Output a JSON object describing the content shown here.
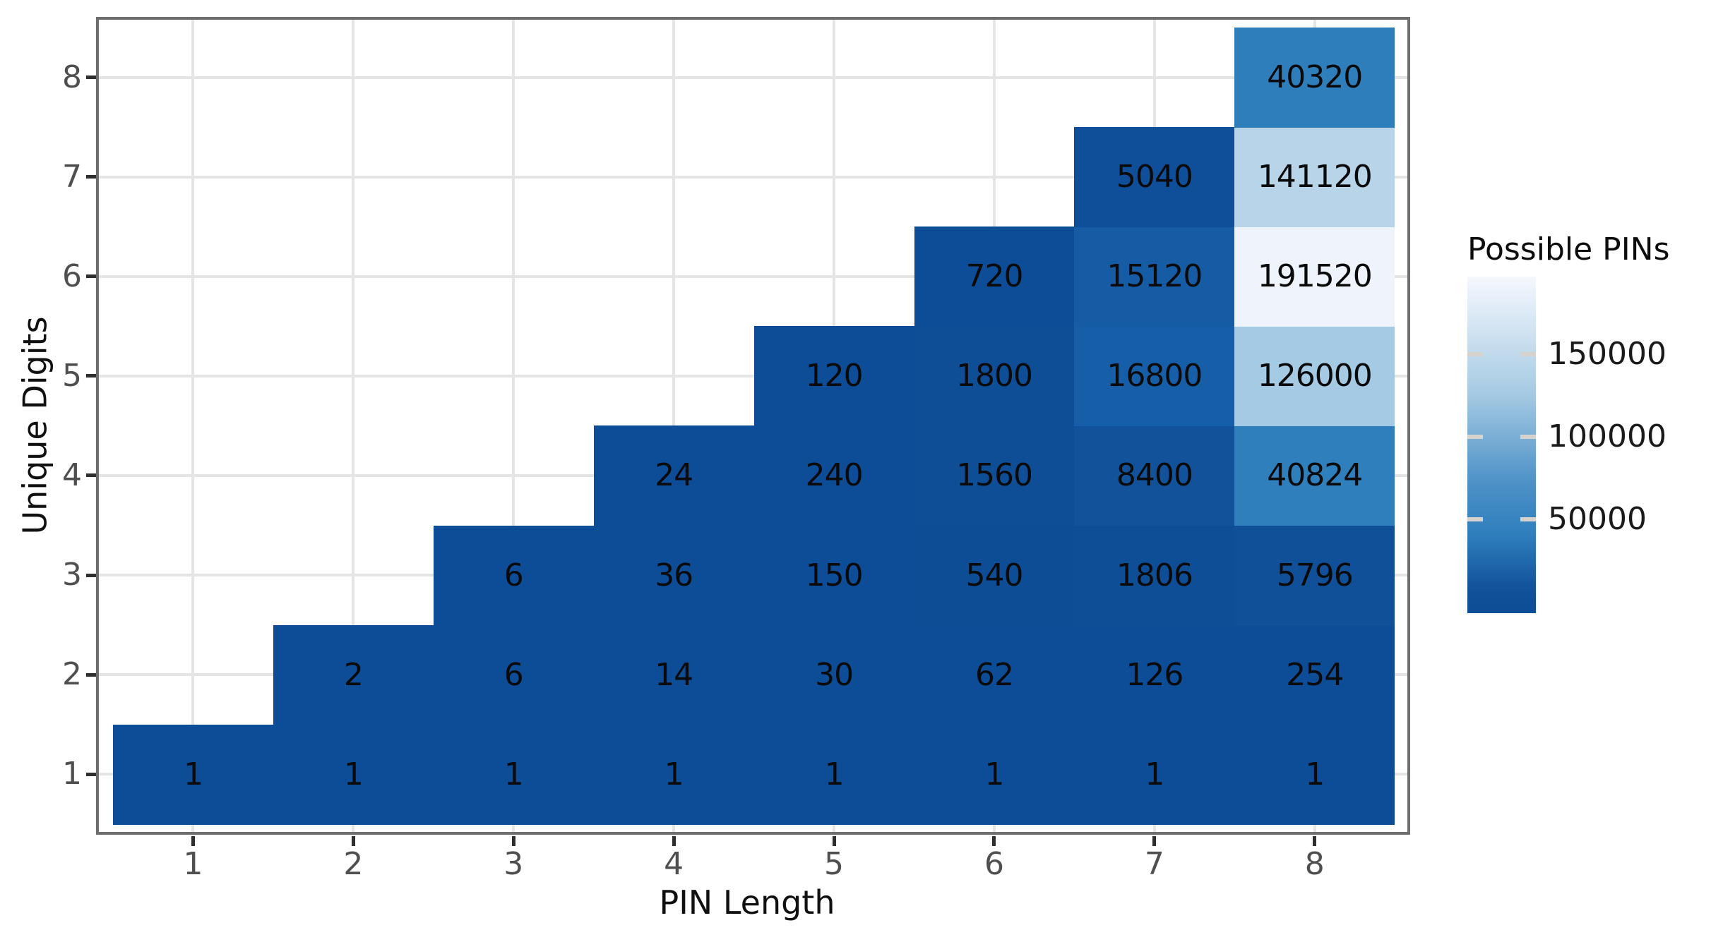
{
  "chart_data": {
    "type": "heatmap",
    "title": "",
    "xlabel": "PIN Length",
    "ylabel": "Unique Digits",
    "legend_title": "Possible PINs",
    "legend_position": "right",
    "grid": true,
    "x_ticks": [
      "1",
      "2",
      "3",
      "4",
      "5",
      "6",
      "7",
      "8"
    ],
    "y_ticks": [
      "1",
      "2",
      "3",
      "4",
      "5",
      "6",
      "7",
      "8"
    ],
    "x_range": [
      0.5,
      8.5
    ],
    "y_range": [
      0.5,
      8.5
    ],
    "value_range": [
      1,
      191520
    ],
    "colorbar": {
      "ticks": [
        {
          "value": 150000,
          "label": "150000"
        },
        {
          "value": 100000,
          "label": "100000"
        },
        {
          "value": 50000,
          "label": "50000"
        }
      ],
      "scale_range": [
        -6800,
        197000
      ],
      "dark_color": "#0d4c96",
      "light_color": "#f4f8fd"
    },
    "cells": [
      {
        "x": 1,
        "y": 1,
        "value": 1,
        "color": "#0d4c96"
      },
      {
        "x": 2,
        "y": 1,
        "value": 1,
        "color": "#0d4c96"
      },
      {
        "x": 3,
        "y": 1,
        "value": 1,
        "color": "#0d4c96"
      },
      {
        "x": 4,
        "y": 1,
        "value": 1,
        "color": "#0d4c96"
      },
      {
        "x": 5,
        "y": 1,
        "value": 1,
        "color": "#0d4c96"
      },
      {
        "x": 6,
        "y": 1,
        "value": 1,
        "color": "#0d4c96"
      },
      {
        "x": 7,
        "y": 1,
        "value": 1,
        "color": "#0d4c96"
      },
      {
        "x": 8,
        "y": 1,
        "value": 1,
        "color": "#0d4c96"
      },
      {
        "x": 2,
        "y": 2,
        "value": 2,
        "color": "#0d4c96"
      },
      {
        "x": 3,
        "y": 2,
        "value": 6,
        "color": "#0d4c96"
      },
      {
        "x": 4,
        "y": 2,
        "value": 14,
        "color": "#0d4c96"
      },
      {
        "x": 5,
        "y": 2,
        "value": 30,
        "color": "#0d4c96"
      },
      {
        "x": 6,
        "y": 2,
        "value": 62,
        "color": "#0d4c96"
      },
      {
        "x": 7,
        "y": 2,
        "value": 126,
        "color": "#0d4c96"
      },
      {
        "x": 8,
        "y": 2,
        "value": 254,
        "color": "#0d4c96"
      },
      {
        "x": 3,
        "y": 3,
        "value": 6,
        "color": "#0d4c96"
      },
      {
        "x": 4,
        "y": 3,
        "value": 36,
        "color": "#0d4c96"
      },
      {
        "x": 5,
        "y": 3,
        "value": 150,
        "color": "#0d4c96"
      },
      {
        "x": 6,
        "y": 3,
        "value": 540,
        "color": "#0d4d96"
      },
      {
        "x": 7,
        "y": 3,
        "value": 1806,
        "color": "#0e4e97"
      },
      {
        "x": 8,
        "y": 3,
        "value": 5796,
        "color": "#105099"
      },
      {
        "x": 4,
        "y": 4,
        "value": 24,
        "color": "#0d4c96"
      },
      {
        "x": 5,
        "y": 4,
        "value": 240,
        "color": "#0d4c96"
      },
      {
        "x": 6,
        "y": 4,
        "value": 1560,
        "color": "#0e4e97"
      },
      {
        "x": 7,
        "y": 4,
        "value": 8400,
        "color": "#11529b"
      },
      {
        "x": 8,
        "y": 4,
        "value": 40824,
        "color": "#307fbd"
      },
      {
        "x": 5,
        "y": 5,
        "value": 120,
        "color": "#0d4c96"
      },
      {
        "x": 6,
        "y": 5,
        "value": 1800,
        "color": "#0e4e97"
      },
      {
        "x": 7,
        "y": 5,
        "value": 16800,
        "color": "#165ea7"
      },
      {
        "x": 8,
        "y": 5,
        "value": 126000,
        "color": "#a5cae3"
      },
      {
        "x": 6,
        "y": 6,
        "value": 720,
        "color": "#0d4d97"
      },
      {
        "x": 7,
        "y": 6,
        "value": 15120,
        "color": "#155ca5"
      },
      {
        "x": 8,
        "y": 6,
        "value": 191520,
        "color": "#eff4fc"
      },
      {
        "x": 7,
        "y": 7,
        "value": 5040,
        "color": "#0f4f99"
      },
      {
        "x": 8,
        "y": 7,
        "value": 141120,
        "color": "#b7d4e9"
      },
      {
        "x": 8,
        "y": 8,
        "value": 40320,
        "color": "#2f7ebc"
      }
    ]
  },
  "colors": {
    "background": "#ffffff",
    "spine": "#6e6e6e",
    "gridline": "#e5e5e5",
    "tick_mark": "#2e2e2e",
    "tick_label": "#4f4f4f",
    "axis_title": "#101010",
    "cell_text": "#0a0a0a",
    "colorbar_dash": "#d6d3cd"
  }
}
